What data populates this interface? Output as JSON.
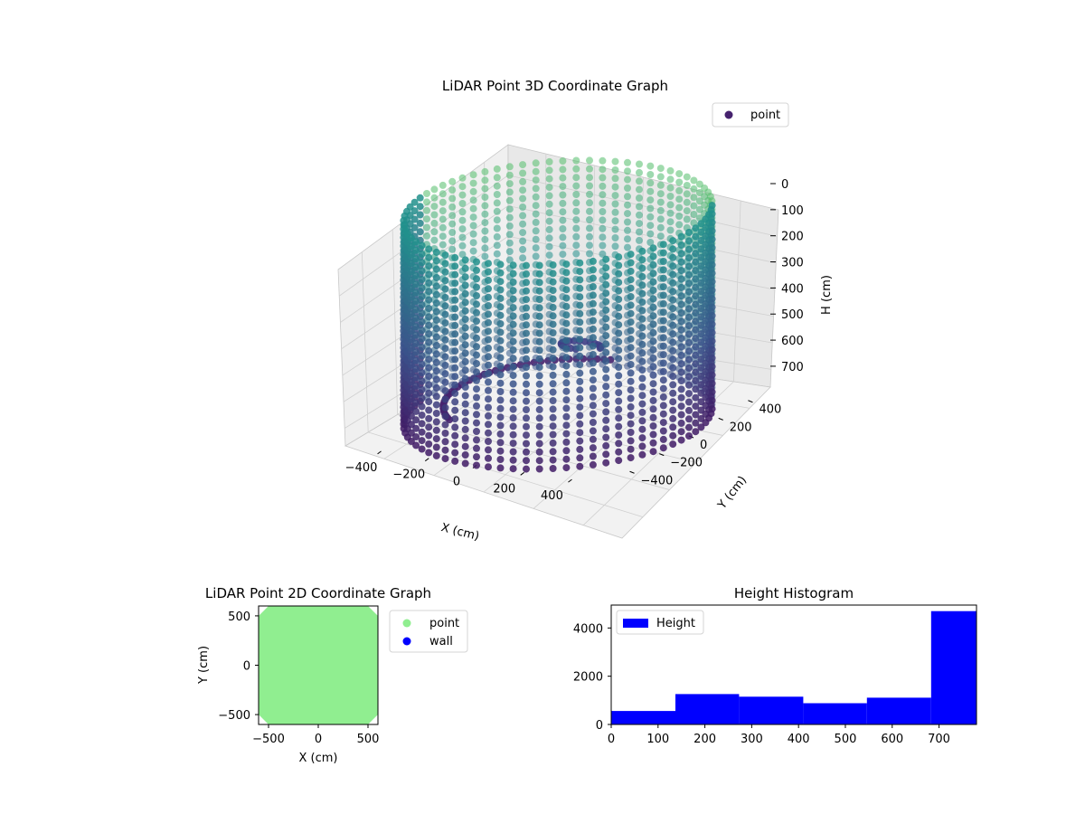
{
  "chart_data": [
    {
      "type": "scatter",
      "projection": "3d",
      "title": "LiDAR Point 3D Coordinate Graph",
      "xlabel": "X (cm)",
      "ylabel": "Y (cm)",
      "zlabel": "H (cm)",
      "xticks": [
        "−400",
        "−200",
        "0",
        "200",
        "400"
      ],
      "yticks": [
        "400",
        "200",
        "0",
        "−200",
        "−400"
      ],
      "zticks": [
        "0",
        "100",
        "200",
        "300",
        "400",
        "500",
        "600",
        "700"
      ],
      "xlim": [
        -550,
        550
      ],
      "ylim": [
        -550,
        550
      ],
      "zlim": [
        0,
        780
      ],
      "z_inverted": true,
      "grid": true,
      "colormap": "viridis",
      "legend": {
        "placement": "top-right",
        "entries": [
          {
            "label": "point",
            "color": "#46226e"
          }
        ]
      },
      "series": [
        {
          "name": "point",
          "shape": "cylindrical wall, radius ≈ 550 cm, height 0–780 cm"
        }
      ]
    },
    {
      "type": "scatter",
      "title": "LiDAR Point 2D Coordinate Graph",
      "xlabel": "X (cm)",
      "ylabel": "Y (cm)",
      "xticks": [
        "−500",
        "0",
        "500"
      ],
      "yticks": [
        "500",
        "0",
        "−500"
      ],
      "xlim": [
        -600,
        600
      ],
      "ylim": [
        -600,
        600
      ],
      "legend": {
        "placement": "outside-right",
        "entries": [
          {
            "label": "point",
            "color": "#90ee90"
          },
          {
            "label": "wall",
            "color": "#0000ff"
          }
        ]
      },
      "series": [
        {
          "name": "point",
          "fill": "#90ee90",
          "shape": "octagon spanning −600 to 600 on both axes"
        }
      ]
    },
    {
      "type": "bar",
      "title": "Height Histogram",
      "xticks": [
        "0",
        "100",
        "200",
        "300",
        "400",
        "500",
        "600",
        "700"
      ],
      "yticks": [
        "0",
        "2000",
        "4000"
      ],
      "xlim": [
        0,
        780
      ],
      "ylim": [
        0,
        4950
      ],
      "bin_edges": [
        0,
        137,
        273,
        410,
        546,
        683,
        780
      ],
      "values": [
        560,
        1260,
        1150,
        880,
        1110,
        4700
      ],
      "color": "#0000ff",
      "legend": {
        "placement": "top-left",
        "entries": [
          {
            "label": "Height",
            "color": "#0000ff"
          }
        ]
      }
    }
  ]
}
